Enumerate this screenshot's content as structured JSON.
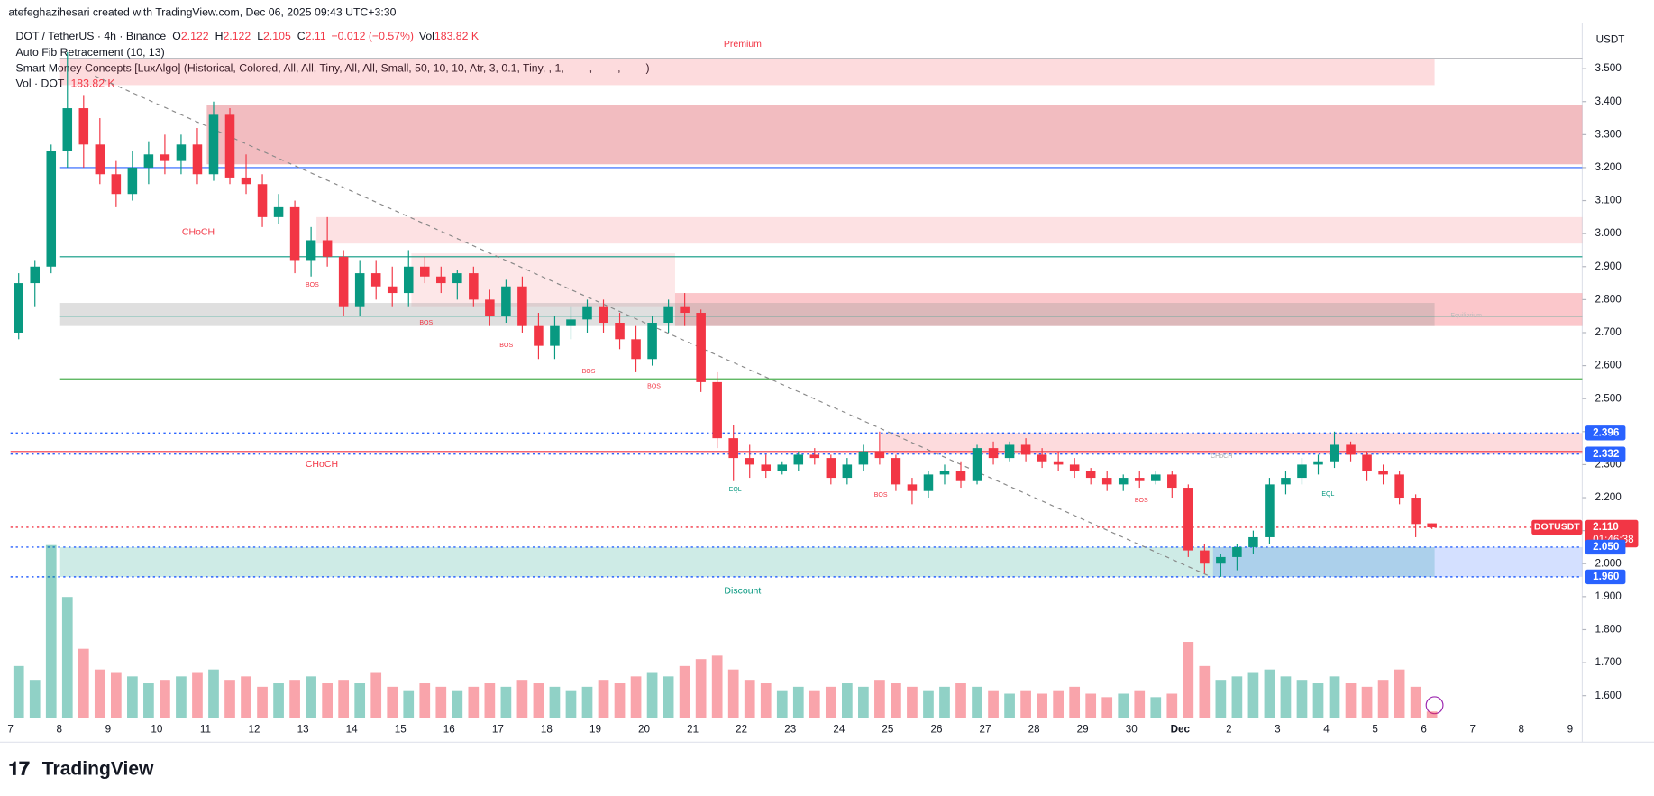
{
  "chart_data": {
    "type": "candlestick",
    "creator": "atefeghazihesari created with TradingView.com, Dec 06, 2025 09:43 UTC+3:30",
    "symbol": "DOT / TetherUS · 4h · Binance",
    "ohlc_legend": {
      "o_label": "O",
      "open": 2.122,
      "h_label": "H",
      "high": 2.122,
      "l_label": "L",
      "low": 2.105,
      "c_label": "C",
      "close": 2.11,
      "change": "−0.012 (−0.57%)",
      "vol_label": "Vol",
      "vol": "183.82 K"
    },
    "indicators": [
      "Auto Fib Retracement (10, 13)",
      "Smart Money Concepts [LuxAlgo] (Historical, Colored, All, All, Tiny, All, All, Small, 50, 10, 10, Atr, 3, 0.1, Tiny, , 1, ——, ——, ——)"
    ],
    "volume_legend": {
      "name": "Vol · DOT",
      "value": "183.82 K"
    },
    "currency": "USDT",
    "brand": "TradingView",
    "x_labels": [
      "7",
      "8",
      "9",
      "10",
      "11",
      "12",
      "13",
      "14",
      "15",
      "16",
      "17",
      "18",
      "19",
      "20",
      "21",
      "22",
      "23",
      "24",
      "25",
      "26",
      "27",
      "28",
      "29",
      "30",
      "Dec",
      "2",
      "3",
      "4",
      "5",
      "6",
      "7",
      "8",
      "9"
    ],
    "ylim": [
      1.5,
      3.6
    ],
    "yticks": [
      {
        "value": 3.5,
        "label": "3.500"
      },
      {
        "value": 3.4,
        "label": "3.400"
      },
      {
        "value": 3.3,
        "label": "3.300"
      },
      {
        "value": 3.2,
        "label": "3.200"
      },
      {
        "value": 3.1,
        "label": "3.100"
      },
      {
        "value": 3.0,
        "label": "3.000"
      },
      {
        "value": 2.9,
        "label": "2.900"
      },
      {
        "value": 2.8,
        "label": "2.800"
      },
      {
        "value": 2.7,
        "label": "2.700"
      },
      {
        "value": 2.6,
        "label": "2.600"
      },
      {
        "value": 2.5,
        "label": "2.500"
      },
      {
        "value": 2.4,
        "label": "2.400"
      },
      {
        "value": 2.3,
        "label": "2.300"
      },
      {
        "value": 2.2,
        "label": "2.200"
      },
      {
        "value": 2.1,
        "label": "2.100"
      },
      {
        "value": 2.0,
        "label": "2.000"
      },
      {
        "value": 1.9,
        "label": "1.900"
      },
      {
        "value": 1.8,
        "label": "1.800"
      },
      {
        "value": 1.7,
        "label": "1.700"
      },
      {
        "value": 1.6,
        "label": "1.600"
      }
    ],
    "up_color": "#089981",
    "down_color": "#f23645",
    "ohlc": [
      [
        2.7,
        2.88,
        2.68,
        2.85
      ],
      [
        2.85,
        2.92,
        2.78,
        2.9
      ],
      [
        2.9,
        3.27,
        2.88,
        3.25
      ],
      [
        3.25,
        3.55,
        3.2,
        3.38
      ],
      [
        3.38,
        3.42,
        3.2,
        3.27
      ],
      [
        3.27,
        3.35,
        3.15,
        3.18
      ],
      [
        3.18,
        3.22,
        3.08,
        3.12
      ],
      [
        3.12,
        3.25,
        3.1,
        3.2
      ],
      [
        3.2,
        3.28,
        3.15,
        3.24
      ],
      [
        3.24,
        3.3,
        3.18,
        3.22
      ],
      [
        3.22,
        3.3,
        3.18,
        3.27
      ],
      [
        3.27,
        3.32,
        3.15,
        3.18
      ],
      [
        3.18,
        3.4,
        3.16,
        3.36
      ],
      [
        3.36,
        3.38,
        3.15,
        3.17
      ],
      [
        3.17,
        3.24,
        3.12,
        3.15
      ],
      [
        3.15,
        3.18,
        3.02,
        3.05
      ],
      [
        3.05,
        3.12,
        3.03,
        3.08
      ],
      [
        3.08,
        3.1,
        2.88,
        2.92
      ],
      [
        2.92,
        3.02,
        2.87,
        2.98
      ],
      [
        2.98,
        3.05,
        2.9,
        2.93
      ],
      [
        2.93,
        2.95,
        2.75,
        2.78
      ],
      [
        2.78,
        2.92,
        2.75,
        2.88
      ],
      [
        2.88,
        2.92,
        2.8,
        2.84
      ],
      [
        2.84,
        2.9,
        2.78,
        2.82
      ],
      [
        2.82,
        2.95,
        2.78,
        2.9
      ],
      [
        2.9,
        2.93,
        2.85,
        2.87
      ],
      [
        2.87,
        2.9,
        2.82,
        2.85
      ],
      [
        2.85,
        2.89,
        2.8,
        2.88
      ],
      [
        2.88,
        2.9,
        2.78,
        2.8
      ],
      [
        2.8,
        2.83,
        2.72,
        2.75
      ],
      [
        2.75,
        2.86,
        2.73,
        2.84
      ],
      [
        2.84,
        2.87,
        2.7,
        2.72
      ],
      [
        2.72,
        2.76,
        2.62,
        2.66
      ],
      [
        2.66,
        2.75,
        2.62,
        2.72
      ],
      [
        2.72,
        2.78,
        2.68,
        2.74
      ],
      [
        2.74,
        2.8,
        2.7,
        2.78
      ],
      [
        2.78,
        2.8,
        2.7,
        2.73
      ],
      [
        2.73,
        2.76,
        2.65,
        2.68
      ],
      [
        2.68,
        2.72,
        2.58,
        2.62
      ],
      [
        2.62,
        2.75,
        2.6,
        2.73
      ],
      [
        2.73,
        2.8,
        2.7,
        2.78
      ],
      [
        2.78,
        2.82,
        2.72,
        2.76
      ],
      [
        2.76,
        2.77,
        2.52,
        2.55
      ],
      [
        2.55,
        2.58,
        2.35,
        2.38
      ],
      [
        2.38,
        2.42,
        2.25,
        2.32
      ],
      [
        2.32,
        2.36,
        2.26,
        2.3
      ],
      [
        2.3,
        2.33,
        2.26,
        2.28
      ],
      [
        2.28,
        2.31,
        2.27,
        2.3
      ],
      [
        2.3,
        2.34,
        2.28,
        2.33
      ],
      [
        2.33,
        2.35,
        2.3,
        2.32
      ],
      [
        2.32,
        2.33,
        2.24,
        2.26
      ],
      [
        2.26,
        2.32,
        2.24,
        2.3
      ],
      [
        2.3,
        2.36,
        2.28,
        2.34
      ],
      [
        2.34,
        2.4,
        2.3,
        2.32
      ],
      [
        2.32,
        2.33,
        2.22,
        2.24
      ],
      [
        2.24,
        2.26,
        2.18,
        2.22
      ],
      [
        2.22,
        2.28,
        2.2,
        2.27
      ],
      [
        2.27,
        2.3,
        2.24,
        2.28
      ],
      [
        2.28,
        2.31,
        2.23,
        2.25
      ],
      [
        2.25,
        2.36,
        2.24,
        2.35
      ],
      [
        2.35,
        2.37,
        2.3,
        2.32
      ],
      [
        2.32,
        2.37,
        2.31,
        2.36
      ],
      [
        2.36,
        2.38,
        2.31,
        2.33
      ],
      [
        2.33,
        2.35,
        2.29,
        2.31
      ],
      [
        2.31,
        2.34,
        2.28,
        2.3
      ],
      [
        2.3,
        2.32,
        2.26,
        2.28
      ],
      [
        2.28,
        2.29,
        2.24,
        2.26
      ],
      [
        2.26,
        2.28,
        2.22,
        2.24
      ],
      [
        2.24,
        2.27,
        2.22,
        2.26
      ],
      [
        2.26,
        2.28,
        2.23,
        2.25
      ],
      [
        2.25,
        2.28,
        2.24,
        2.27
      ],
      [
        2.27,
        2.28,
        2.2,
        2.23
      ],
      [
        2.23,
        2.24,
        2.02,
        2.04
      ],
      [
        2.04,
        2.06,
        1.97,
        2.0
      ],
      [
        2.0,
        2.03,
        1.96,
        2.02
      ],
      [
        2.02,
        2.06,
        1.98,
        2.05
      ],
      [
        2.05,
        2.1,
        2.03,
        2.08
      ],
      [
        2.08,
        2.26,
        2.06,
        2.24
      ],
      [
        2.24,
        2.28,
        2.21,
        2.26
      ],
      [
        2.26,
        2.32,
        2.24,
        2.3
      ],
      [
        2.3,
        2.33,
        2.27,
        2.31
      ],
      [
        2.31,
        2.4,
        2.29,
        2.36
      ],
      [
        2.36,
        2.37,
        2.31,
        2.33
      ],
      [
        2.33,
        2.34,
        2.25,
        2.28
      ],
      [
        2.28,
        2.3,
        2.24,
        2.27
      ],
      [
        2.27,
        2.28,
        2.18,
        2.2
      ],
      [
        2.2,
        2.21,
        2.08,
        2.12
      ],
      [
        2.122,
        2.122,
        2.105,
        2.11
      ]
    ],
    "volume": [
      1500,
      1100,
      5000,
      3500,
      2000,
      1400,
      1300,
      1200,
      1000,
      1100,
      1200,
      1300,
      1400,
      1100,
      1200,
      900,
      1000,
      1100,
      1200,
      1000,
      1100,
      1000,
      1300,
      900,
      800,
      1000,
      900,
      800,
      900,
      1000,
      900,
      1100,
      1000,
      900,
      800,
      900,
      1100,
      1000,
      1200,
      1300,
      1200,
      1500,
      1700,
      1800,
      1400,
      1100,
      1000,
      800,
      900,
      800,
      900,
      1000,
      900,
      1100,
      1000,
      900,
      800,
      900,
      1000,
      900,
      800,
      700,
      800,
      700,
      800,
      900,
      700,
      600,
      700,
      800,
      600,
      700,
      2200,
      1500,
      1100,
      1200,
      1300,
      1400,
      1200,
      1100,
      1000,
      1200,
      1000,
      900,
      1100,
      1400,
      900,
      183.82
    ],
    "vlim": [
      0,
      5500
    ],
    "zones": [
      {
        "top": 3.53,
        "bottom": 3.45,
        "color": "rgba(242,54,69,0.18)"
      },
      {
        "top": 3.39,
        "bottom": 3.21,
        "color": "rgba(220,80,90,0.38)"
      },
      {
        "top": 3.05,
        "bottom": 2.97,
        "color": "rgba(242,54,69,0.15)"
      },
      {
        "top": 2.94,
        "bottom": 2.78,
        "color": "rgba(242,54,69,0.12)"
      },
      {
        "top": 2.82,
        "bottom": 2.72,
        "color": "rgba(242,54,69,0.28)"
      },
      {
        "top": 2.79,
        "bottom": 2.72,
        "color": "rgba(150,150,150,0.3)"
      },
      {
        "top": 2.396,
        "bottom": 2.332,
        "color": "rgba(242,54,69,0.18)"
      },
      {
        "top": 2.05,
        "bottom": 1.96,
        "color": "rgba(8,153,129,0.2)"
      },
      {
        "top": 2.05,
        "bottom": 1.96,
        "color": "rgba(41,98,255,0.2)"
      }
    ],
    "levels": [
      {
        "value": 3.53,
        "color": "#787b86"
      },
      {
        "value": 3.2,
        "color": "#2962ff"
      },
      {
        "value": 2.93,
        "color": "#089981"
      },
      {
        "value": 2.75,
        "color": "#089981"
      },
      {
        "value": 2.56,
        "color": "#4caf50"
      },
      {
        "value": 2.34,
        "color": "#f23645"
      }
    ],
    "price_labels": [
      {
        "value": 2.396,
        "label": "2.396",
        "color": "#2962ff"
      },
      {
        "value": 2.332,
        "label": "2.332",
        "color": "#2962ff"
      },
      {
        "value": 2.11,
        "label": "2.110",
        "color": "#f23645",
        "name": "DOTUSDT",
        "countdown": "01:46:38"
      },
      {
        "value": 2.05,
        "label": "2.050",
        "color": "#2962ff"
      },
      {
        "value": 1.96,
        "label": "1.960",
        "color": "#2962ff"
      }
    ],
    "annotations": [
      "Premium",
      "Discount",
      "CHoCH",
      "CHoCH",
      "BOS",
      "BOS",
      "BOS",
      "BOS",
      "BOS",
      "BOS",
      "BOS",
      "EQL",
      "EQL",
      "CHoCH",
      "Equilibrium"
    ]
  }
}
